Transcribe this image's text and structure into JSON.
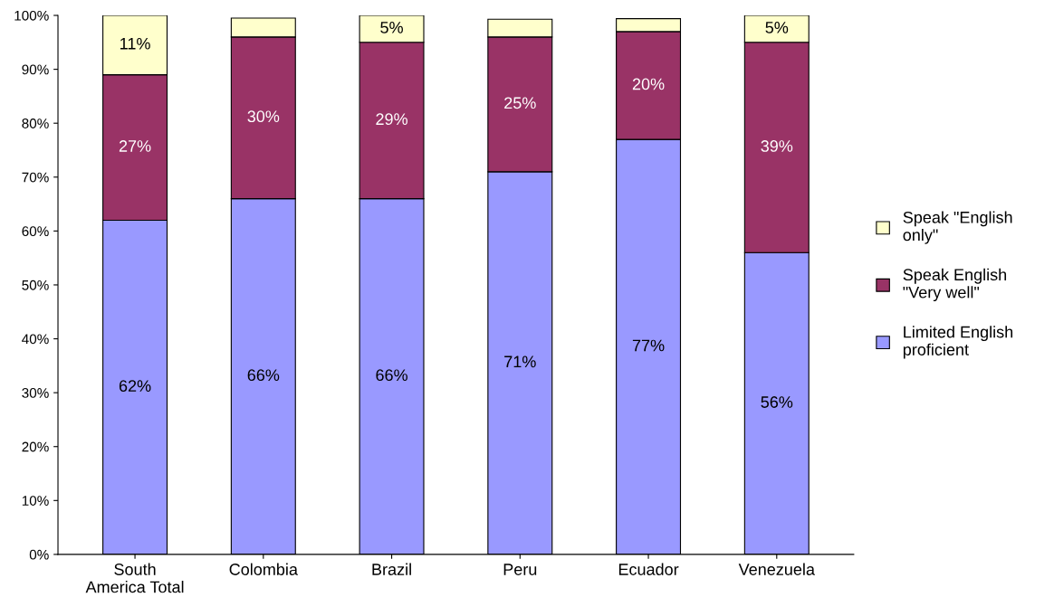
{
  "chart_data": {
    "type": "bar",
    "stacked": true,
    "categories": [
      "South\nAmerica Total",
      "Colombia",
      "Brazil",
      "Peru",
      "Ecuador",
      "Venezuela"
    ],
    "series": [
      {
        "name": "Limited English\nproficient",
        "color": "#9999ff",
        "values": [
          62,
          66,
          66,
          71,
          77,
          56
        ],
        "value_labels": [
          "62%",
          "66%",
          "66%",
          "71%",
          "77%",
          "56%"
        ]
      },
      {
        "name": "Speak English\n\"Very well\"",
        "color": "#993366",
        "values": [
          27,
          30,
          29,
          25,
          20,
          39
        ],
        "value_labels": [
          "27%",
          "30%",
          "29%",
          "25%",
          "20%",
          "39%"
        ]
      },
      {
        "name": "Speak \"English\nonly\"",
        "color": "#ffffcc",
        "values": [
          11,
          3.5,
          5,
          3.3,
          2.4,
          5
        ],
        "value_labels": [
          "11%",
          null,
          "5%",
          null,
          null,
          "5%"
        ]
      }
    ],
    "ylim": [
      0,
      100
    ],
    "yticks": [
      {
        "value": 0,
        "label": "0%"
      },
      {
        "value": 10,
        "label": "10%"
      },
      {
        "value": 20,
        "label": "20%"
      },
      {
        "value": 30,
        "label": "30%"
      },
      {
        "value": 40,
        "label": "40%"
      },
      {
        "value": 50,
        "label": "50%"
      },
      {
        "value": 60,
        "label": "60%"
      },
      {
        "value": 70,
        "label": "70%"
      },
      {
        "value": 80,
        "label": "80%"
      },
      {
        "value": 90,
        "label": "90%"
      },
      {
        "value": 100,
        "label": "100%"
      }
    ],
    "grid": false,
    "legend": "right"
  }
}
